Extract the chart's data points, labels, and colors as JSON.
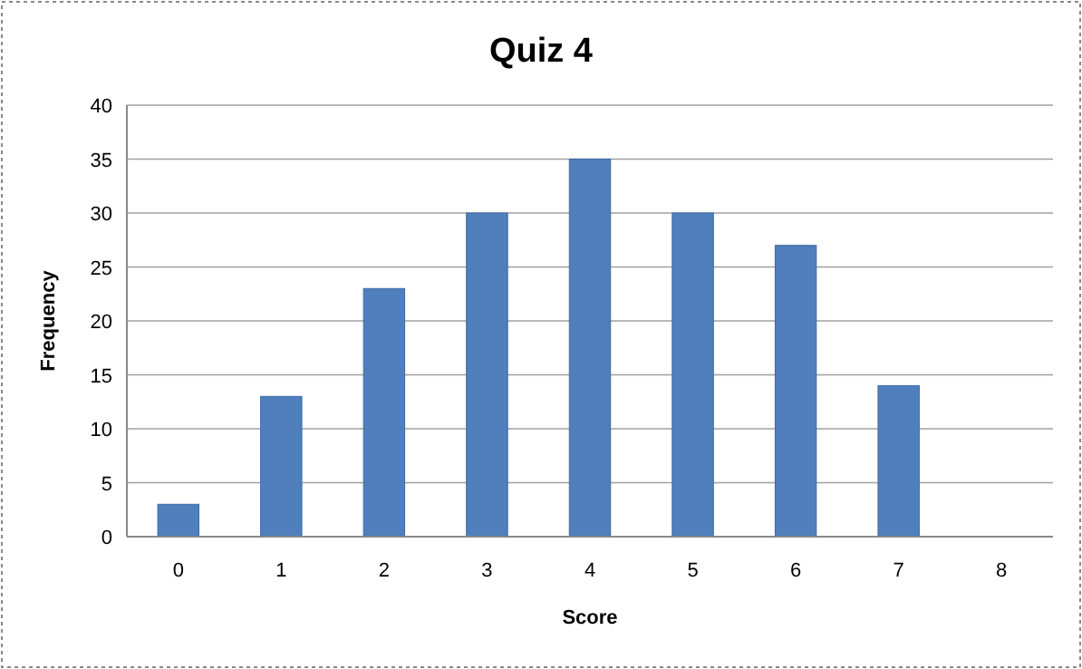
{
  "chart_data": {
    "type": "bar",
    "title": "Quiz 4",
    "xlabel": "Score",
    "ylabel": "Frequency",
    "categories": [
      "0",
      "1",
      "2",
      "3",
      "4",
      "5",
      "6",
      "7",
      "8"
    ],
    "values": [
      3,
      13,
      23,
      30,
      35,
      30,
      27,
      14,
      0
    ],
    "color": "#4f7fbc",
    "ylim": [
      0,
      40
    ],
    "yticks": [
      0,
      5,
      10,
      15,
      20,
      25,
      30,
      35,
      40
    ],
    "grid": "y"
  }
}
